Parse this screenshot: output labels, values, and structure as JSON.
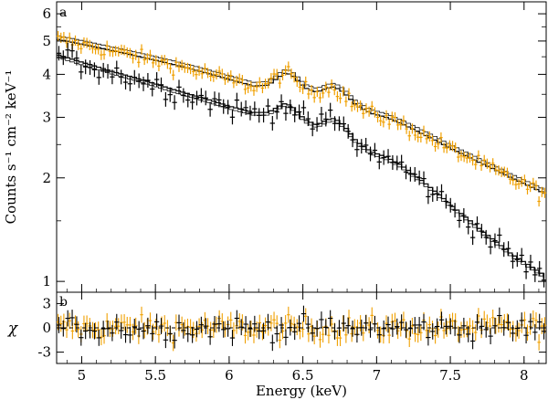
{
  "chart_data": [
    {
      "panel_label": "a",
      "type": "scatter",
      "yscale": "log",
      "xlim": [
        4.83,
        8.15
      ],
      "ylim": [
        0.93,
        6.5
      ],
      "ylabel": "Counts s⁻¹ cm⁻² keV⁻¹",
      "yticks": [
        {
          "value": 1,
          "label": "1"
        },
        {
          "value": 2,
          "label": "2"
        },
        {
          "value": 3,
          "label": "3"
        },
        {
          "value": 4,
          "label": "4"
        },
        {
          "value": 5,
          "label": "5"
        },
        {
          "value": 6,
          "label": "6"
        }
      ],
      "series": [
        {
          "color": "#f0a000",
          "model": [
            [
              4.83,
              5.05
            ],
            [
              5.0,
              4.88
            ],
            [
              5.2,
              4.68
            ],
            [
              5.4,
              4.48
            ],
            [
              5.6,
              4.28
            ],
            [
              5.8,
              4.07
            ],
            [
              6.0,
              3.85
            ],
            [
              6.15,
              3.7
            ],
            [
              6.25,
              3.72
            ],
            [
              6.32,
              3.92
            ],
            [
              6.37,
              4.05
            ],
            [
              6.42,
              3.95
            ],
            [
              6.5,
              3.65
            ],
            [
              6.58,
              3.55
            ],
            [
              6.65,
              3.65
            ],
            [
              6.7,
              3.68
            ],
            [
              6.76,
              3.55
            ],
            [
              6.85,
              3.25
            ],
            [
              6.95,
              3.08
            ],
            [
              7.05,
              3.0
            ],
            [
              7.15,
              2.88
            ],
            [
              7.3,
              2.68
            ],
            [
              7.5,
              2.42
            ],
            [
              7.7,
              2.2
            ],
            [
              7.9,
              2.0
            ],
            [
              8.15,
              1.78
            ]
          ]
        },
        {
          "color": "#000000",
          "model": [
            [
              4.83,
              4.55
            ],
            [
              5.0,
              4.32
            ],
            [
              5.2,
              4.07
            ],
            [
              5.4,
              3.85
            ],
            [
              5.6,
              3.62
            ],
            [
              5.8,
              3.42
            ],
            [
              6.0,
              3.22
            ],
            [
              6.15,
              3.1
            ],
            [
              6.25,
              3.1
            ],
            [
              6.32,
              3.22
            ],
            [
              6.37,
              3.3
            ],
            [
              6.42,
              3.2
            ],
            [
              6.5,
              2.95
            ],
            [
              6.58,
              2.85
            ],
            [
              6.65,
              2.95
            ],
            [
              6.7,
              2.98
            ],
            [
              6.76,
              2.85
            ],
            [
              6.85,
              2.55
            ],
            [
              6.95,
              2.38
            ],
            [
              7.05,
              2.3
            ],
            [
              7.15,
              2.18
            ],
            [
              7.3,
              1.95
            ],
            [
              7.5,
              1.65
            ],
            [
              7.7,
              1.4
            ],
            [
              7.9,
              1.2
            ],
            [
              8.15,
              1.02
            ]
          ]
        }
      ]
    },
    {
      "panel_label": "b",
      "type": "scatter",
      "xlim": [
        4.83,
        8.15
      ],
      "ylim": [
        -4.4,
        4.4
      ],
      "ylabel": "χ",
      "xlabel": "Energy (keV)",
      "xticks": [
        {
          "value": 5,
          "label": "5"
        },
        {
          "value": 5.5,
          "label": "5.5"
        },
        {
          "value": 6,
          "label": "6"
        },
        {
          "value": 6.5,
          "label": "6.5"
        },
        {
          "value": 7,
          "label": "7"
        },
        {
          "value": 7.5,
          "label": "7.5"
        },
        {
          "value": 8,
          "label": "8"
        }
      ],
      "yticks": [
        {
          "value": 3,
          "label": "3"
        },
        {
          "value": 0,
          "label": "0"
        },
        {
          "value": -3,
          "label": "-3"
        }
      ],
      "reference_line": 0,
      "series": [
        {
          "color": "#f0a000"
        },
        {
          "color": "#000000"
        }
      ]
    }
  ]
}
